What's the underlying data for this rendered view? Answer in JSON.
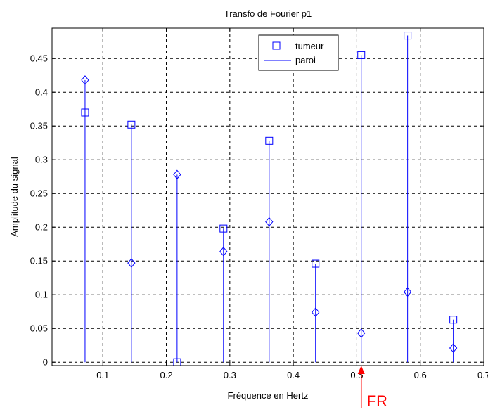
{
  "chart_data": {
    "type": "stem",
    "title": "Transfo de Fourier p1",
    "xlabel": "Fréquence en Hertz",
    "ylabel": "Amplitude du signal",
    "xlim": [
      0.02,
      0.7
    ],
    "ylim": [
      -0.005,
      0.495
    ],
    "xticks": [
      "0.1",
      "0.2",
      "0.3",
      "0.4",
      "0.5",
      "0.6",
      "0.7"
    ],
    "yticks": [
      "0",
      "0.05",
      "0.1",
      "0.15",
      "0.2",
      "0.25",
      "0.3",
      "0.35",
      "0.4",
      "0.45"
    ],
    "grid": true,
    "legend_position": "top-right",
    "legend": [
      "tumeur",
      "paroi"
    ],
    "series": [
      {
        "name": "tumeur",
        "marker": "square",
        "x": [
          0.072,
          0.145,
          0.217,
          0.29,
          0.362,
          0.435,
          0.507,
          0.58,
          0.652
        ],
        "values": [
          0.37,
          0.352,
          0.0,
          0.198,
          0.328,
          0.146,
          0.455,
          0.484,
          0.063
        ]
      },
      {
        "name": "paroi",
        "marker": "diamond",
        "x": [
          0.072,
          0.145,
          0.217,
          0.29,
          0.362,
          0.435,
          0.507,
          0.58,
          0.652
        ],
        "values": [
          0.418,
          0.147,
          0.278,
          0.164,
          0.208,
          0.074,
          0.043,
          0.104,
          0.021
        ]
      }
    ],
    "annotation": {
      "text": "FR",
      "x": 0.507,
      "color": "#ff0000"
    },
    "colors": {
      "series": "#0000ff",
      "axes": "#000000",
      "annotation": "#ff0000"
    }
  }
}
